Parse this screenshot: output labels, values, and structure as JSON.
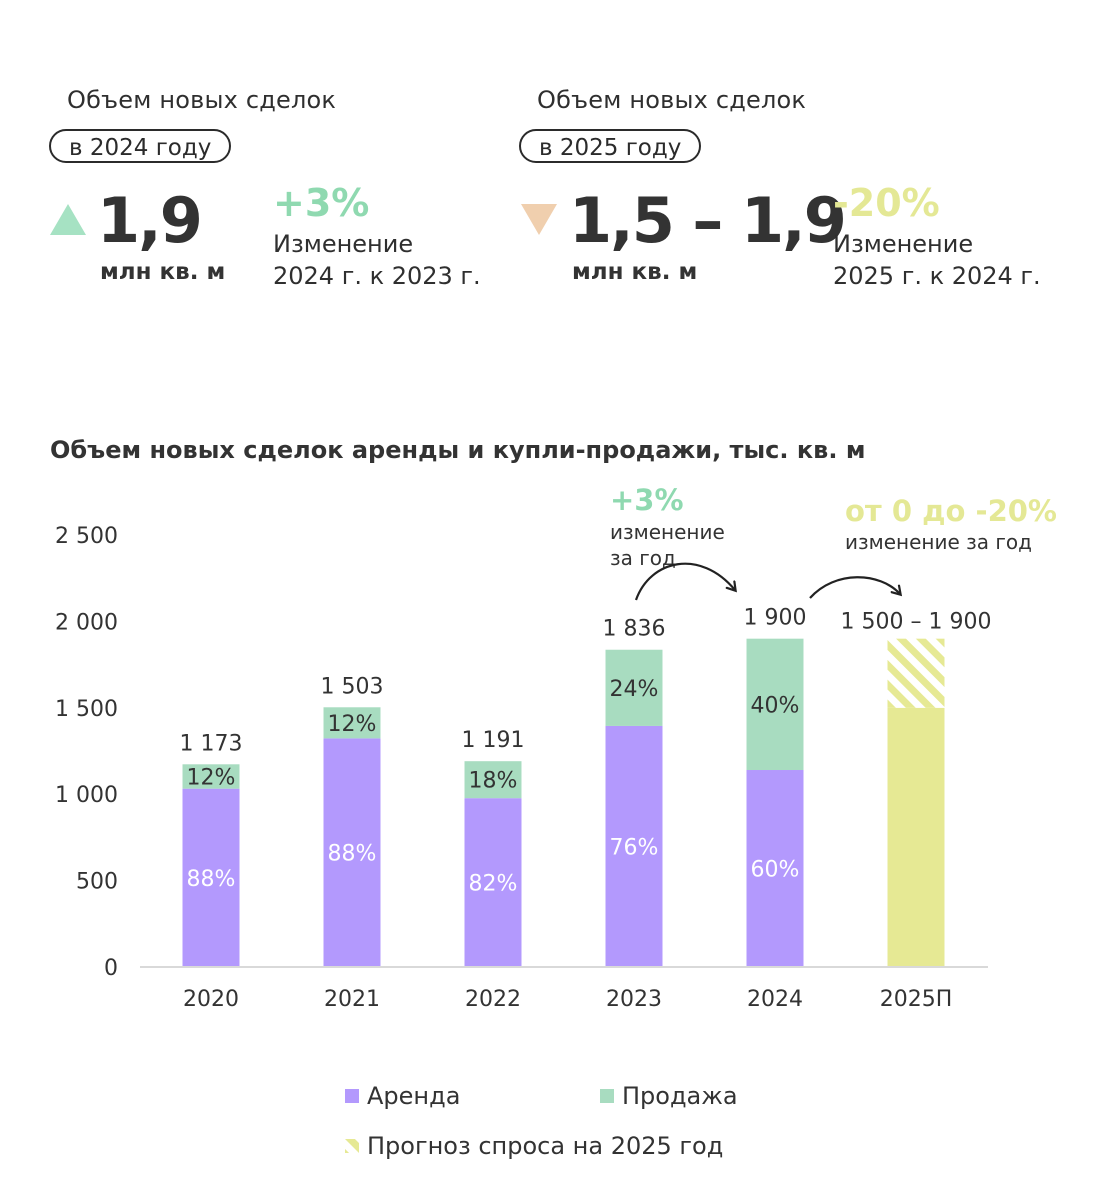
{
  "colors": {
    "rent": "#b399fd",
    "sale": "#a8dcc0",
    "forecast": "#e6e994",
    "up": "#a6e2c3",
    "down": "#f0cfae",
    "green_text": "#8fd9b0",
    "yellow_text": "#e4e895",
    "dark": "#333333"
  },
  "kpi": [
    {
      "label": "Объем новых сделок",
      "year_pill": "в 2024 году",
      "arrow": "up-triangle-icon",
      "value": "1,9",
      "unit": "млн кв. м",
      "delta": "+3%",
      "delta_desc": "Изменение\n2024 г. к 2023 г."
    },
    {
      "label": "Объем новых сделок",
      "year_pill": "в 2025 году",
      "arrow": "down-triangle-icon",
      "value": "1,5 – 1,9",
      "unit": "млн кв. м",
      "delta": "-20%",
      "delta_desc": "Изменение\n2025 г. к 2024 г."
    }
  ],
  "chart_data": {
    "type": "bar",
    "stacked": true,
    "title": "Объем новых сделок аренды и купли-продажи, тыс. кв. м",
    "categories": [
      "2020",
      "2021",
      "2022",
      "2023",
      "2024",
      "2025П"
    ],
    "ylim": [
      0,
      2500
    ],
    "yticks": [
      0,
      500,
      1000,
      1500,
      2000,
      2500
    ],
    "ytick_labels": [
      "0",
      "500",
      "1 000",
      "1 500",
      "2 000",
      "2 500"
    ],
    "totals": [
      1173,
      1503,
      1191,
      1836,
      1900,
      null
    ],
    "total_labels": [
      "1 173",
      "1 503",
      "1 191",
      "1 836",
      "1 900",
      "1 500 – 1 900"
    ],
    "series": [
      {
        "name": "Аренда",
        "values": [
          1032,
          1323,
          977,
          1395,
          1140,
          null
        ],
        "share_labels": [
          "88%",
          "88%",
          "82%",
          "76%",
          "60%",
          ""
        ]
      },
      {
        "name": "Продажа",
        "values": [
          141,
          180,
          214,
          441,
          760,
          null
        ],
        "share_labels": [
          "12%",
          "12%",
          "18%",
          "24%",
          "40%",
          ""
        ]
      }
    ],
    "forecast": {
      "name": "Прогноз спроса на 2025 год",
      "low": 1500,
      "high": 1900
    },
    "annotations": [
      {
        "value": "+3%",
        "text": "изменение\nза год"
      },
      {
        "value": "от 0 до -20%",
        "text": "изменение за год"
      }
    ],
    "legend": "bottom-center",
    "grid": false
  }
}
